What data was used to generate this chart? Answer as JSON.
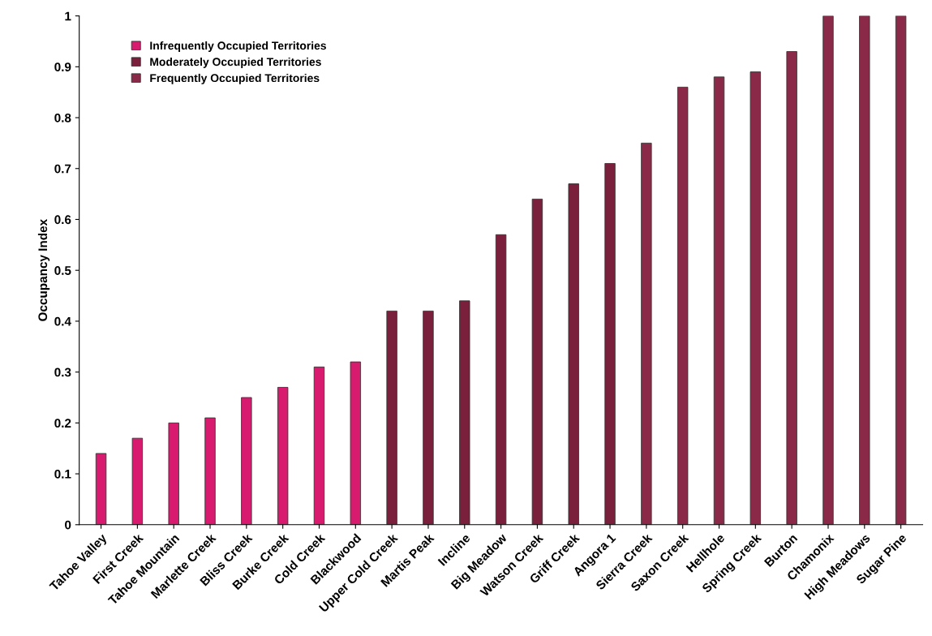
{
  "chart_data": {
    "type": "bar",
    "ylabel": "Occupancy Index",
    "categories": [
      "Tahoe Valley",
      "First Creek",
      "Tahoe Mountain",
      "Marlette Creek",
      "Bliss Creek",
      "Burke Creek",
      "Cold Creek",
      "Blackwood",
      "Upper Cold Creek",
      "Martis Peak",
      "Incline",
      "Big Meadow",
      "Watson Creek",
      "Griff Creek",
      "Angora 1",
      "Sierra Creek",
      "Saxon Creek",
      "Hellhole",
      "Spring Creek",
      "Burton",
      "Chamonix",
      "High Meadows",
      "Sugar Pine"
    ],
    "series": [
      {
        "name": "Infrequently Occupied Territories",
        "color": "#d81b6e",
        "values": [
          0.14,
          0.17,
          0.2,
          0.21,
          0.25,
          0.27,
          0.31,
          0.32,
          null,
          null,
          null,
          null,
          null,
          null,
          null,
          null,
          null,
          null,
          null,
          null,
          null,
          null,
          null
        ]
      },
      {
        "name": "Moderately Occupied Territories",
        "color": "#7a1f3c",
        "values": [
          null,
          null,
          null,
          null,
          null,
          null,
          null,
          null,
          0.42,
          0.42,
          0.44,
          0.57,
          0.64,
          0.67,
          0.71,
          null,
          null,
          null,
          null,
          null,
          null,
          null,
          null
        ]
      },
      {
        "name": "Frequently Occupied Territories",
        "color": "#8b2a48",
        "values": [
          null,
          null,
          null,
          null,
          null,
          null,
          null,
          null,
          null,
          null,
          null,
          null,
          null,
          null,
          null,
          0.75,
          0.86,
          0.88,
          0.89,
          0.93,
          1,
          1,
          1
        ]
      }
    ],
    "ylim": [
      0,
      1
    ],
    "yticks": [
      0,
      0.1,
      0.2,
      0.3,
      0.4,
      0.5,
      0.6,
      0.7,
      0.8,
      0.9,
      1
    ],
    "legend": "top left",
    "grid": false
  }
}
